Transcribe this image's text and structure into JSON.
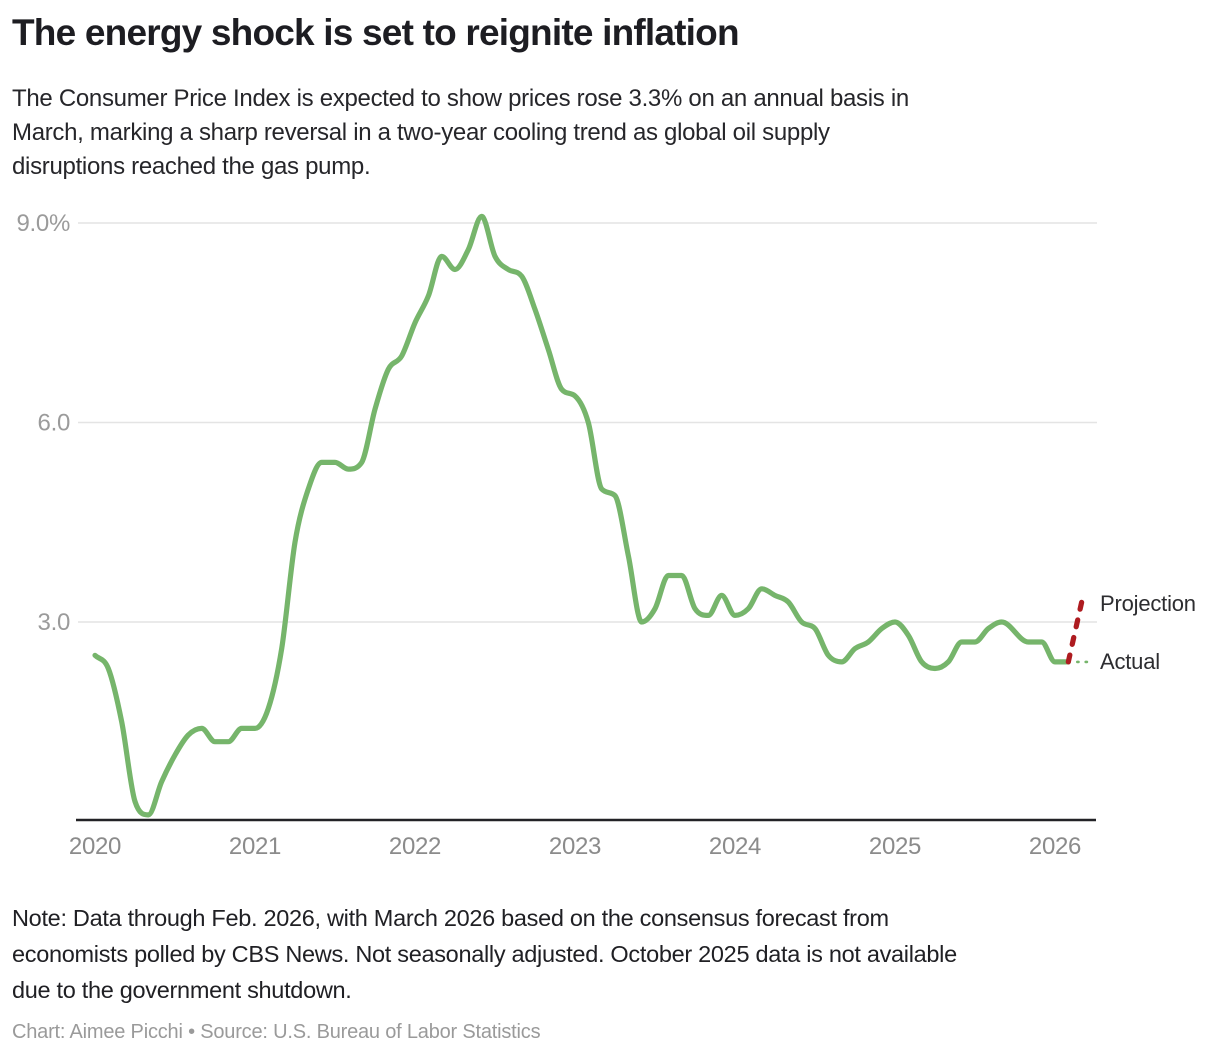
{
  "header": {
    "title": "The energy shock is set to reignite inflation",
    "subtitle": "The Consumer Price Index is expected to show prices rose 3.3% on an annual basis in March, marking a sharp reversal in a two-year cooling trend as global oil supply disruptions reached the gas pump."
  },
  "chart_data": {
    "type": "line",
    "title": "The energy shock is set to reignite inflation",
    "xlabel": "",
    "ylabel": "",
    "x_unit": "month",
    "x_start": "2020-01",
    "x_tick_years": [
      "2020",
      "2021",
      "2022",
      "2023",
      "2024",
      "2025",
      "2026"
    ],
    "y_ticks": [
      {
        "value": 9.0,
        "label": "9.0%"
      },
      {
        "value": 6.0,
        "label": "6.0"
      },
      {
        "value": 3.0,
        "label": "3.0"
      }
    ],
    "ylim": [
      0,
      9.5
    ],
    "grid": "horizontal",
    "legend_position": "right-edge-annotations",
    "series": [
      {
        "name": "Actual",
        "style": "solid",
        "color": "#76b56b",
        "x_start": "2020-01",
        "values": [
          2.5,
          2.3,
          1.5,
          0.3,
          0.1,
          0.6,
          1.0,
          1.3,
          1.4,
          1.2,
          1.2,
          1.4,
          1.4,
          1.7,
          2.6,
          4.2,
          5.0,
          5.4,
          5.4,
          5.3,
          5.4,
          6.2,
          6.8,
          7.0,
          7.5,
          7.9,
          8.5,
          8.3,
          8.6,
          9.1,
          8.5,
          8.3,
          8.2,
          7.7,
          7.1,
          6.5,
          6.4,
          6.0,
          5.0,
          4.9,
          4.0,
          3.0,
          3.2,
          3.7,
          3.7,
          3.2,
          3.1,
          3.4,
          3.1,
          3.2,
          3.5,
          3.4,
          3.3,
          3.0,
          2.9,
          2.5,
          2.4,
          2.6,
          2.7,
          2.9,
          3.0,
          2.8,
          2.4,
          2.3,
          2.4,
          2.7,
          2.7,
          2.9,
          3.0,
          null,
          2.7,
          2.7,
          2.4,
          2.4
        ]
      },
      {
        "name": "Projection",
        "style": "dashed",
        "color": "#ae1b20",
        "x_start": "2026-02",
        "values": [
          2.4,
          3.3
        ]
      }
    ],
    "annotations": {
      "projection_label": "Projection",
      "actual_label": "Actual"
    },
    "missing_data_months": [
      "2025-10"
    ]
  },
  "footer": {
    "note": "Note: Data through Feb. 2026, with March 2026 based on the consensus forecast from economists polled by CBS News. Not seasonally adjusted. October 2025 data is not available due to the government shutdown.",
    "credit": "Chart: Aimee Picchi • Source: U.S. Bureau of Labor Statistics"
  }
}
